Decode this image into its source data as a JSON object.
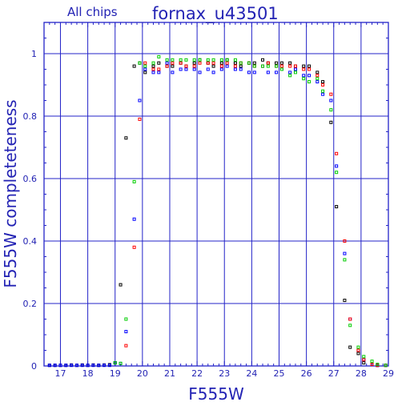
{
  "chart_data": {
    "type": "scatter",
    "subtitle": "All chips",
    "title": "fornax_u43501",
    "xlabel": "F555W",
    "ylabel": "F555W completeteness",
    "xlim": [
      16.4,
      29
    ],
    "ylim": [
      0,
      1.1
    ],
    "x_ticks": [
      17,
      18,
      19,
      20,
      21,
      22,
      23,
      24,
      25,
      26,
      27,
      28,
      29
    ],
    "y_ticks": [
      0,
      0.2,
      0.4,
      0.6,
      0.8,
      1
    ],
    "y_tick_labels": [
      "0",
      "0.2",
      "0.4",
      "0.6",
      "0.8",
      "1"
    ],
    "grid": true,
    "series": [
      {
        "color": "#000000",
        "points": [
          [
            16.6,
            0.002
          ],
          [
            16.8,
            0.002
          ],
          [
            17.0,
            0.002
          ],
          [
            17.2,
            0.002
          ],
          [
            17.4,
            0.003
          ],
          [
            17.6,
            0.002
          ],
          [
            17.8,
            0.003
          ],
          [
            18.0,
            0.002
          ],
          [
            18.2,
            0.003
          ],
          [
            18.4,
            0.002
          ],
          [
            18.6,
            0.003
          ],
          [
            18.8,
            0.004
          ],
          [
            19.0,
            0.01
          ],
          [
            19.2,
            0.26
          ],
          [
            19.4,
            0.73
          ],
          [
            19.7,
            0.96
          ],
          [
            19.9,
            0.97
          ],
          [
            20.1,
            0.94
          ],
          [
            20.4,
            0.96
          ],
          [
            20.6,
            0.97
          ],
          [
            20.9,
            0.96
          ],
          [
            21.1,
            0.96
          ],
          [
            21.4,
            0.97
          ],
          [
            21.6,
            0.96
          ],
          [
            21.9,
            0.97
          ],
          [
            22.1,
            0.98
          ],
          [
            22.4,
            0.97
          ],
          [
            22.6,
            0.96
          ],
          [
            22.9,
            0.97
          ],
          [
            23.1,
            0.98
          ],
          [
            23.4,
            0.97
          ],
          [
            23.6,
            0.96
          ],
          [
            23.9,
            0.97
          ],
          [
            24.1,
            0.97
          ],
          [
            24.4,
            0.98
          ],
          [
            24.6,
            0.97
          ],
          [
            24.9,
            0.97
          ],
          [
            25.1,
            0.97
          ],
          [
            25.4,
            0.97
          ],
          [
            25.6,
            0.96
          ],
          [
            25.9,
            0.96
          ],
          [
            26.1,
            0.96
          ],
          [
            26.4,
            0.94
          ],
          [
            26.6,
            0.91
          ],
          [
            26.9,
            0.78
          ],
          [
            27.1,
            0.51
          ],
          [
            27.4,
            0.21
          ],
          [
            27.6,
            0.06
          ],
          [
            27.9,
            0.04
          ],
          [
            28.1,
            0.01
          ],
          [
            28.4,
            0.005
          ],
          [
            28.6,
            0.002
          ],
          [
            28.9,
            0.002
          ]
        ]
      },
      {
        "color": "#0000ff",
        "points": [
          [
            16.6,
            0.002
          ],
          [
            16.8,
            0.002
          ],
          [
            17.0,
            0.002
          ],
          [
            17.2,
            0.002
          ],
          [
            17.4,
            0.002
          ],
          [
            17.6,
            0.002
          ],
          [
            17.8,
            0.002
          ],
          [
            18.0,
            0.002
          ],
          [
            18.2,
            0.002
          ],
          [
            18.4,
            0.002
          ],
          [
            18.6,
            0.002
          ],
          [
            18.8,
            0.002
          ],
          [
            19.0,
            0.01
          ],
          [
            19.2,
            0.008
          ],
          [
            19.4,
            0.11
          ],
          [
            19.7,
            0.47
          ],
          [
            19.9,
            0.85
          ],
          [
            20.1,
            0.95
          ],
          [
            20.4,
            0.94
          ],
          [
            20.6,
            0.94
          ],
          [
            20.9,
            0.97
          ],
          [
            21.1,
            0.94
          ],
          [
            21.4,
            0.95
          ],
          [
            21.6,
            0.95
          ],
          [
            21.9,
            0.95
          ],
          [
            22.1,
            0.94
          ],
          [
            22.4,
            0.95
          ],
          [
            22.6,
            0.94
          ],
          [
            22.9,
            0.95
          ],
          [
            23.1,
            0.96
          ],
          [
            23.4,
            0.95
          ],
          [
            23.6,
            0.95
          ],
          [
            23.9,
            0.94
          ],
          [
            24.1,
            0.94
          ],
          [
            24.4,
            0.96
          ],
          [
            24.6,
            0.94
          ],
          [
            24.9,
            0.94
          ],
          [
            25.1,
            0.95
          ],
          [
            25.4,
            0.94
          ],
          [
            25.6,
            0.95
          ],
          [
            25.9,
            0.93
          ],
          [
            26.1,
            0.93
          ],
          [
            26.4,
            0.91
          ],
          [
            26.6,
            0.87
          ],
          [
            26.9,
            0.85
          ],
          [
            27.1,
            0.64
          ],
          [
            27.4,
            0.36
          ],
          [
            27.6,
            0.15
          ],
          [
            27.9,
            0.05
          ],
          [
            28.1,
            0.02
          ],
          [
            28.4,
            0.005
          ],
          [
            28.6,
            0.002
          ],
          [
            28.9,
            0.002
          ]
        ]
      },
      {
        "color": "#ff0000",
        "points": [
          [
            19.4,
            0.065
          ],
          [
            19.7,
            0.38
          ],
          [
            19.9,
            0.79
          ],
          [
            20.1,
            0.97
          ],
          [
            20.4,
            0.95
          ],
          [
            20.6,
            0.95
          ],
          [
            20.9,
            0.96
          ],
          [
            21.1,
            0.97
          ],
          [
            21.4,
            0.97
          ],
          [
            21.6,
            0.96
          ],
          [
            21.9,
            0.96
          ],
          [
            22.1,
            0.97
          ],
          [
            22.4,
            0.97
          ],
          [
            22.6,
            0.97
          ],
          [
            22.9,
            0.96
          ],
          [
            23.1,
            0.97
          ],
          [
            23.4,
            0.96
          ],
          [
            23.6,
            0.97
          ],
          [
            23.9,
            0.97
          ],
          [
            24.1,
            0.96
          ],
          [
            24.4,
            0.96
          ],
          [
            24.6,
            0.97
          ],
          [
            24.9,
            0.96
          ],
          [
            25.1,
            0.96
          ],
          [
            25.4,
            0.96
          ],
          [
            25.6,
            0.96
          ],
          [
            25.9,
            0.95
          ],
          [
            26.1,
            0.95
          ],
          [
            26.4,
            0.93
          ],
          [
            26.6,
            0.9
          ],
          [
            26.9,
            0.87
          ],
          [
            27.1,
            0.68
          ],
          [
            27.4,
            0.4
          ],
          [
            27.6,
            0.15
          ],
          [
            27.9,
            0.05
          ],
          [
            28.1,
            0.02
          ],
          [
            28.4,
            0.005
          ],
          [
            28.6,
            0.002
          ],
          [
            28.9,
            0.002
          ]
        ]
      },
      {
        "color": "#00cc00",
        "points": [
          [
            19.0,
            0.01
          ],
          [
            19.2,
            0.008
          ],
          [
            19.4,
            0.15
          ],
          [
            19.7,
            0.59
          ],
          [
            19.9,
            0.97
          ],
          [
            20.1,
            0.96
          ],
          [
            20.4,
            0.97
          ],
          [
            20.6,
            0.99
          ],
          [
            20.9,
            0.98
          ],
          [
            21.1,
            0.98
          ],
          [
            21.4,
            0.98
          ],
          [
            21.6,
            0.98
          ],
          [
            21.9,
            0.98
          ],
          [
            22.1,
            0.98
          ],
          [
            22.4,
            0.98
          ],
          [
            22.6,
            0.98
          ],
          [
            22.9,
            0.98
          ],
          [
            23.1,
            0.98
          ],
          [
            23.4,
            0.98
          ],
          [
            23.6,
            0.97
          ],
          [
            23.9,
            0.97
          ],
          [
            24.1,
            0.96
          ],
          [
            24.4,
            0.96
          ],
          [
            24.6,
            0.96
          ],
          [
            24.9,
            0.96
          ],
          [
            25.1,
            0.95
          ],
          [
            25.4,
            0.93
          ],
          [
            25.6,
            0.94
          ],
          [
            25.9,
            0.92
          ],
          [
            26.1,
            0.91
          ],
          [
            26.4,
            0.92
          ],
          [
            26.6,
            0.88
          ],
          [
            26.9,
            0.82
          ],
          [
            27.1,
            0.62
          ],
          [
            27.4,
            0.34
          ],
          [
            27.6,
            0.13
          ],
          [
            27.9,
            0.06
          ],
          [
            28.1,
            0.03
          ],
          [
            28.4,
            0.015
          ],
          [
            28.6,
            0.005
          ],
          [
            28.9,
            0.002
          ]
        ]
      }
    ]
  }
}
